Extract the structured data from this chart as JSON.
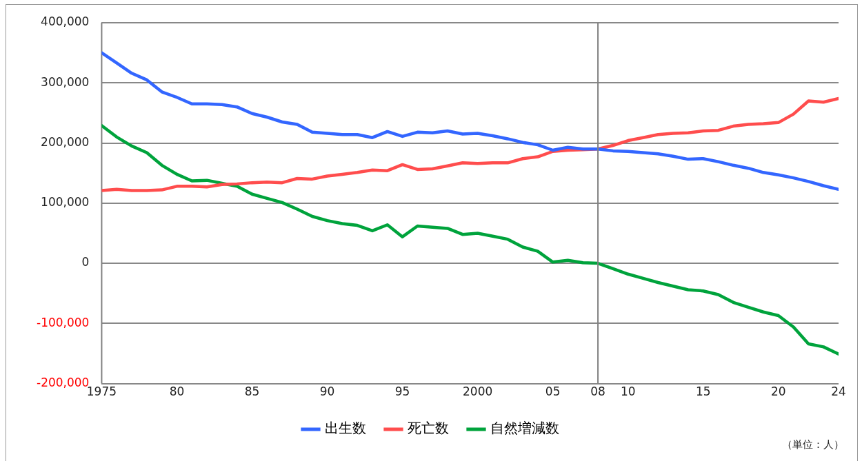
{
  "chart_data": {
    "type": "line",
    "x": [
      1975,
      1976,
      1977,
      1978,
      1979,
      1980,
      1981,
      1982,
      1983,
      1984,
      1985,
      1986,
      1987,
      1988,
      1989,
      1990,
      1991,
      1992,
      1993,
      1994,
      1995,
      1996,
      1997,
      1998,
      1999,
      2000,
      2001,
      2002,
      2003,
      2004,
      2005,
      2006,
      2007,
      2008,
      2009,
      2010,
      2011,
      2012,
      2013,
      2014,
      2015,
      2016,
      2017,
      2018,
      2019,
      2020,
      2021,
      2022,
      2023,
      2024
    ],
    "series": [
      {
        "name": "出生数",
        "color": "#3366ff",
        "values": [
          350000,
          333000,
          316000,
          305000,
          285000,
          276000,
          265000,
          265000,
          264000,
          260000,
          249000,
          243000,
          235000,
          231000,
          218000,
          216000,
          214000,
          214000,
          209000,
          219000,
          211000,
          218000,
          217000,
          220000,
          215000,
          216000,
          212000,
          207000,
          201000,
          197000,
          188000,
          193000,
          190000,
          190000,
          187000,
          186000,
          184000,
          182000,
          178000,
          173000,
          174000,
          169000,
          163000,
          158000,
          151000,
          147000,
          142000,
          136000,
          129000,
          123000
        ]
      },
      {
        "name": "死亡数",
        "color": "#ff4d4d",
        "values": [
          121000,
          123000,
          121000,
          121000,
          122000,
          128000,
          128000,
          127000,
          131000,
          132000,
          134000,
          135000,
          134000,
          141000,
          140000,
          145000,
          148000,
          151000,
          155000,
          154000,
          164000,
          156000,
          157000,
          162000,
          167000,
          166000,
          167000,
          167000,
          174000,
          177000,
          186000,
          188000,
          189000,
          190000,
          196000,
          204000,
          209000,
          214000,
          216000,
          217000,
          220000,
          221000,
          228000,
          231000,
          232000,
          234000,
          248000,
          270000,
          268000,
          274000
        ]
      },
      {
        "name": "自然増減数",
        "color": "#00a33c",
        "values": [
          229000,
          210000,
          195000,
          184000,
          163000,
          148000,
          137000,
          138000,
          133000,
          128000,
          115000,
          108000,
          101000,
          90000,
          78000,
          71000,
          66000,
          63000,
          54000,
          64000,
          44000,
          62000,
          60000,
          58000,
          48000,
          50000,
          45000,
          40000,
          27000,
          20000,
          2000,
          5000,
          1000,
          0,
          -9000,
          -18000,
          -25000,
          -32000,
          -38000,
          -44000,
          -46000,
          -52000,
          -65000,
          -73000,
          -81000,
          -87000,
          -106000,
          -134000,
          -139000,
          -151000
        ]
      }
    ],
    "xlim": [
      1975,
      2024
    ],
    "xticks": [
      1975,
      {
        "value": 1980,
        "label": "80"
      },
      {
        "value": 1985,
        "label": "85"
      },
      {
        "value": 1990,
        "label": "90"
      },
      {
        "value": 1995,
        "label": "95"
      },
      2000,
      {
        "value": 2005,
        "label": "05"
      },
      {
        "value": 2008,
        "label": "08"
      },
      {
        "value": 2010,
        "label": "10"
      },
      {
        "value": 2015,
        "label": "15"
      },
      {
        "value": 2020,
        "label": "20"
      },
      {
        "value": 2024,
        "label": "24"
      }
    ],
    "ylim": [
      -200000,
      400000
    ],
    "yticks": [
      {
        "value": -200000,
        "label": "-200,000"
      },
      {
        "value": -100000,
        "label": "-100,000"
      },
      0,
      {
        "value": 100000,
        "label": "100,000"
      },
      {
        "value": 200000,
        "label": "200,000"
      },
      {
        "value": 300000,
        "label": "300,000"
      },
      {
        "value": 400000,
        "label": "400,000"
      }
    ],
    "ref_lines": [
      {
        "axis": "x",
        "value": 2008,
        "color": "#808080"
      }
    ],
    "grid": "y",
    "legend": "bottom",
    "marker": "none",
    "line_style": "solid",
    "annotations": [
      "（単位：人）"
    ]
  }
}
